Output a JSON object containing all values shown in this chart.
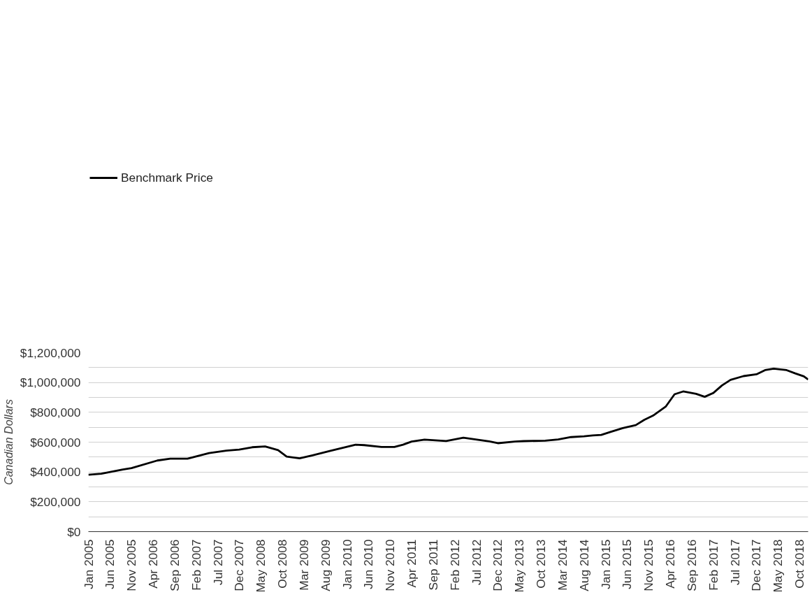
{
  "chart_data": {
    "type": "line",
    "ylabel": "Canadian Dollars",
    "x": [
      "2005-01",
      "2005-04",
      "2005-09",
      "2005-11",
      "2006-05",
      "2006-08",
      "2006-12",
      "2007-05",
      "2007-09",
      "2007-12",
      "2008-03",
      "2008-06",
      "2008-09",
      "2008-11",
      "2009-02",
      "2009-05",
      "2009-09",
      "2010-03",
      "2010-05",
      "2010-09",
      "2010-12",
      "2011-02",
      "2011-04",
      "2011-07",
      "2011-12",
      "2012-04",
      "2012-08",
      "2012-10",
      "2012-12",
      "2013-04",
      "2013-06",
      "2013-11",
      "2014-02",
      "2014-05",
      "2014-08",
      "2014-10",
      "2014-12",
      "2015-02",
      "2015-05",
      "2015-08",
      "2015-10",
      "2015-12",
      "2016-03",
      "2016-05",
      "2016-07",
      "2016-10",
      "2016-12",
      "2017-02",
      "2017-04",
      "2017-06",
      "2017-09",
      "2017-12",
      "2018-02",
      "2018-04",
      "2018-07",
      "2018-09",
      "2018-11",
      "2018-12"
    ],
    "series": [
      {
        "name": "Benchmark Price",
        "color": "#000000",
        "values": [
          381000,
          388000,
          417000,
          426000,
          477000,
          489000,
          489000,
          527000,
          543000,
          550000,
          566000,
          571000,
          547000,
          503000,
          492000,
          512000,
          541000,
          583000,
          580000,
          568000,
          568000,
          583000,
          604000,
          617000,
          608000,
          630000,
          614000,
          605000,
          593000,
          604000,
          607000,
          610000,
          618000,
          634000,
          639000,
          645000,
          649000,
          667000,
          694000,
          714000,
          750000,
          778000,
          840000,
          921000,
          940000,
          924000,
          904000,
          930000,
          980000,
          1018000,
          1043000,
          1055000,
          1083000,
          1093000,
          1083000,
          1061000,
          1041000,
          1020000
        ]
      }
    ],
    "xlim": [
      "2005-01",
      "2018-12"
    ],
    "xticks": [
      {
        "value": "2005-01",
        "label": "Jan 2005"
      },
      {
        "value": "2005-06",
        "label": "Jun 2005"
      },
      {
        "value": "2005-11",
        "label": "Nov 2005"
      },
      {
        "value": "2006-04",
        "label": "Apr 2006"
      },
      {
        "value": "2006-09",
        "label": "Sep 2006"
      },
      {
        "value": "2007-02",
        "label": "Feb 2007"
      },
      {
        "value": "2007-07",
        "label": "Jul 2007"
      },
      {
        "value": "2007-12",
        "label": "Dec 2007"
      },
      {
        "value": "2008-05",
        "label": "May 2008"
      },
      {
        "value": "2008-10",
        "label": "Oct 2008"
      },
      {
        "value": "2009-03",
        "label": "Mar 2009"
      },
      {
        "value": "2009-08",
        "label": "Aug 2009"
      },
      {
        "value": "2010-01",
        "label": "Jan 2010"
      },
      {
        "value": "2010-06",
        "label": "Jun 2010"
      },
      {
        "value": "2010-11",
        "label": "Nov 2010"
      },
      {
        "value": "2011-04",
        "label": "Apr 2011"
      },
      {
        "value": "2011-09",
        "label": "Sep 2011"
      },
      {
        "value": "2012-02",
        "label": "Feb 2012"
      },
      {
        "value": "2012-07",
        "label": "Jul 2012"
      },
      {
        "value": "2012-12",
        "label": "Dec 2012"
      },
      {
        "value": "2013-05",
        "label": "May 2013"
      },
      {
        "value": "2013-10",
        "label": "Oct 2013"
      },
      {
        "value": "2014-03",
        "label": "Mar 2014"
      },
      {
        "value": "2014-08",
        "label": "Aug 2014"
      },
      {
        "value": "2015-01",
        "label": "Jan 2015"
      },
      {
        "value": "2015-06",
        "label": "Jun 2015"
      },
      {
        "value": "2015-11",
        "label": "Nov 2015"
      },
      {
        "value": "2016-04",
        "label": "Apr 2016"
      },
      {
        "value": "2016-09",
        "label": "Sep 2016"
      },
      {
        "value": "2017-02",
        "label": "Feb 2017"
      },
      {
        "value": "2017-07",
        "label": "Jul 2017"
      },
      {
        "value": "2017-12",
        "label": "Dec 2017"
      },
      {
        "value": "2018-05",
        "label": "May 2018"
      },
      {
        "value": "2018-10",
        "label": "Oct 2018"
      }
    ],
    "ylim": [
      0,
      1200000
    ],
    "yticks": [
      {
        "value": 0,
        "label": "$0"
      },
      {
        "value": 100000,
        "label": null
      },
      {
        "value": 200000,
        "label": "$200,000"
      },
      {
        "value": 300000,
        "label": null
      },
      {
        "value": 400000,
        "label": "$400,000"
      },
      {
        "value": 500000,
        "label": null
      },
      {
        "value": 600000,
        "label": "$600,000"
      },
      {
        "value": 700000,
        "label": null
      },
      {
        "value": 800000,
        "label": "$800,000"
      },
      {
        "value": 900000,
        "label": null
      },
      {
        "value": 1000000,
        "label": "$1,000,000"
      },
      {
        "value": 1100000,
        "label": null
      },
      {
        "value": 1200000,
        "label": "$1,200,000"
      }
    ],
    "grid": "y",
    "legend": "top left",
    "marker": "none",
    "line_style": "solid"
  }
}
